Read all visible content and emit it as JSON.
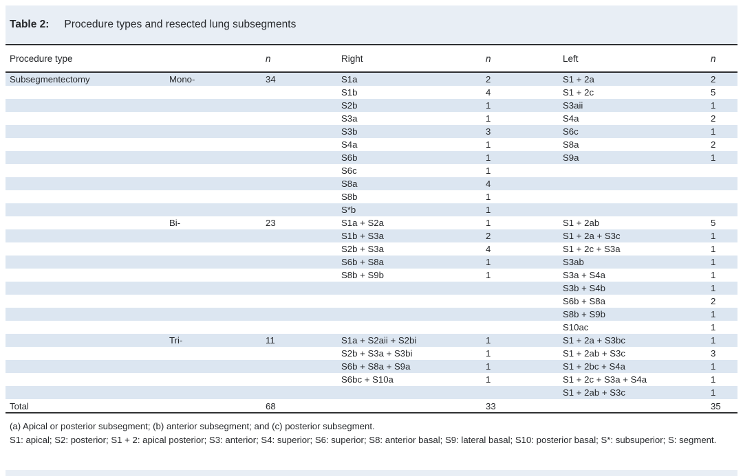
{
  "title": {
    "label": "Table 2:",
    "text": "Procedure types and resected lung subsegments"
  },
  "columns": {
    "procedure_type": "Procedure type",
    "n1": "n",
    "right": "Right",
    "n2": "n",
    "left": "Left",
    "n3": "n"
  },
  "rows": [
    {
      "procedure": "Subsegmentectomy",
      "subtype": "Mono-",
      "n": "34",
      "right": "S1a",
      "rn": "2",
      "left": "S1 + 2a",
      "ln": "2"
    },
    {
      "procedure": "",
      "subtype": "",
      "n": "",
      "right": "S1b",
      "rn": "4",
      "left": "S1 + 2c",
      "ln": "5"
    },
    {
      "procedure": "",
      "subtype": "",
      "n": "",
      "right": "S2b",
      "rn": "1",
      "left": "S3aii",
      "ln": "1"
    },
    {
      "procedure": "",
      "subtype": "",
      "n": "",
      "right": "S3a",
      "rn": "1",
      "left": "S4a",
      "ln": "2"
    },
    {
      "procedure": "",
      "subtype": "",
      "n": "",
      "right": "S3b",
      "rn": "3",
      "left": "S6c",
      "ln": "1"
    },
    {
      "procedure": "",
      "subtype": "",
      "n": "",
      "right": "S4a",
      "rn": "1",
      "left": "S8a",
      "ln": "2"
    },
    {
      "procedure": "",
      "subtype": "",
      "n": "",
      "right": "S6b",
      "rn": "1",
      "left": "S9a",
      "ln": "1"
    },
    {
      "procedure": "",
      "subtype": "",
      "n": "",
      "right": "S6c",
      "rn": "1",
      "left": "",
      "ln": ""
    },
    {
      "procedure": "",
      "subtype": "",
      "n": "",
      "right": "S8a",
      "rn": "4",
      "left": "",
      "ln": ""
    },
    {
      "procedure": "",
      "subtype": "",
      "n": "",
      "right": "S8b",
      "rn": "1",
      "left": "",
      "ln": ""
    },
    {
      "procedure": "",
      "subtype": "",
      "n": "",
      "right": "S*b",
      "rn": "1",
      "left": "",
      "ln": ""
    },
    {
      "procedure": "",
      "subtype": "Bi-",
      "n": "23",
      "right": "S1a + S2a",
      "rn": "1",
      "left": "S1 + 2ab",
      "ln": "5"
    },
    {
      "procedure": "",
      "subtype": "",
      "n": "",
      "right": "S1b + S3a",
      "rn": "2",
      "left": "S1 + 2a + S3c",
      "ln": "1"
    },
    {
      "procedure": "",
      "subtype": "",
      "n": "",
      "right": "S2b + S3a",
      "rn": "4",
      "left": "S1 + 2c + S3a",
      "ln": "1"
    },
    {
      "procedure": "",
      "subtype": "",
      "n": "",
      "right": "S6b + S8a",
      "rn": "1",
      "left": "S3ab",
      "ln": "1"
    },
    {
      "procedure": "",
      "subtype": "",
      "n": "",
      "right": "S8b + S9b",
      "rn": "1",
      "left": "S3a + S4a",
      "ln": "1"
    },
    {
      "procedure": "",
      "subtype": "",
      "n": "",
      "right": "",
      "rn": "",
      "left": "S3b + S4b",
      "ln": "1"
    },
    {
      "procedure": "",
      "subtype": "",
      "n": "",
      "right": "",
      "rn": "",
      "left": "S6b + S8a",
      "ln": "2"
    },
    {
      "procedure": "",
      "subtype": "",
      "n": "",
      "right": "",
      "rn": "",
      "left": "S8b + S9b",
      "ln": "1"
    },
    {
      "procedure": "",
      "subtype": "",
      "n": "",
      "right": "",
      "rn": "",
      "left": "S10ac",
      "ln": "1"
    },
    {
      "procedure": "",
      "subtype": "Tri-",
      "n": "11",
      "right": "S1a + S2aii + S2bi",
      "rn": "1",
      "left": "S1 + 2a + S3bc",
      "ln": "1"
    },
    {
      "procedure": "",
      "subtype": "",
      "n": "",
      "right": "S2b + S3a + S3bi",
      "rn": "1",
      "left": "S1 + 2ab + S3c",
      "ln": "3"
    },
    {
      "procedure": "",
      "subtype": "",
      "n": "",
      "right": "S6b + S8a + S9a",
      "rn": "1",
      "left": "S1 + 2bc + S4a",
      "ln": "1"
    },
    {
      "procedure": "",
      "subtype": "",
      "n": "",
      "right": "S6bc + S10a",
      "rn": "1",
      "left": "S1 + 2c + S3a + S4a",
      "ln": "1"
    },
    {
      "procedure": "",
      "subtype": "",
      "n": "",
      "right": "",
      "rn": "",
      "left": "S1 + 2ab + S3c",
      "ln": "1"
    }
  ],
  "total": {
    "label": "Total",
    "n": "68",
    "rn": "33",
    "ln": "35"
  },
  "footnotes": [
    "(a) Apical or posterior subsegment; (b) anterior subsegment; and (c) posterior subsegment.",
    "S1: apical; S2: posterior; S1 + 2: apical posterior; S3: anterior; S4: superior; S6: superior; S8: anterior basal; S9: lateral basal; S10: posterior basal; S*: subsuperior; S: segment."
  ],
  "colors": {
    "stripe": "#dce6f1",
    "title_band": "#e8eef5",
    "rule": "#2e2f31"
  }
}
